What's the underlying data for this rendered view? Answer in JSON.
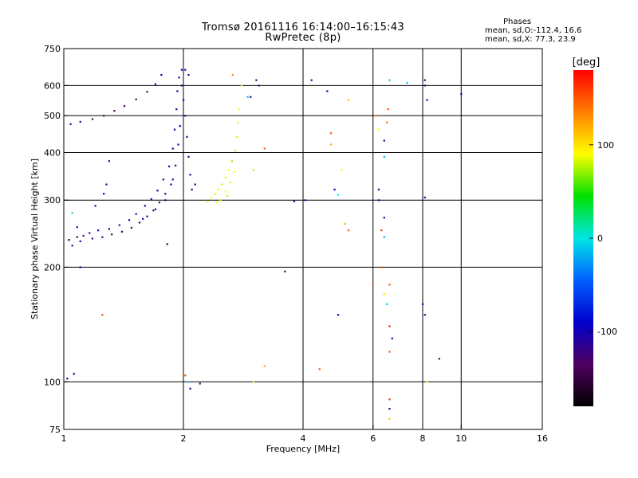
{
  "header": {
    "title_line1": "Tromsø 20161116 16:14:00–16:15:43",
    "title_line2": "RwPretec (8p)"
  },
  "phases": {
    "title": "Phases",
    "o_stats": "mean, sd,O:-112.4, 16.6",
    "x_stats": "mean, sd,X:  77.3, 23.9"
  },
  "colorbar": {
    "unit_label": "[deg]",
    "range": [
      -180,
      180
    ],
    "tick_labels": [
      "100",
      "0",
      "-100"
    ],
    "tick_values": [
      100,
      0,
      -100
    ],
    "colors": [
      "#ff0000",
      "#ff7f00",
      "#ffff00",
      "#00e000",
      "#00e5e5",
      "#0060ff",
      "#0000cc",
      "#50005f",
      "#000000"
    ]
  },
  "chart_data": {
    "type": "scatter",
    "xlabel": "Frequency [MHz]",
    "ylabel": "Stationary phase Virtual Height [km]",
    "x_scale": "log",
    "y_scale": "log",
    "xlim": [
      1,
      16
    ],
    "ylim": [
      75,
      750
    ],
    "x_ticks": [
      1,
      2,
      4,
      6,
      8,
      10,
      16
    ],
    "x_tick_labels": [
      "1",
      "2",
      "4",
      "6",
      "8",
      "10",
      "16"
    ],
    "y_ticks": [
      75,
      100,
      200,
      300,
      400,
      500,
      600,
      750
    ],
    "y_tick_labels": [
      "75",
      "100",
      "200",
      "300",
      "400",
      "500",
      "600",
      "750"
    ],
    "v_grid_lines": [
      2,
      4,
      6,
      8,
      10
    ],
    "h_grid_lines": [
      100,
      200,
      300,
      400,
      500,
      600
    ],
    "series": [
      {
        "color_by": "phase_deg",
        "points": [
          [
            1.03,
            236,
            -150
          ],
          [
            1.08,
            240,
            -140
          ],
          [
            1.12,
            242,
            -130
          ],
          [
            1.18,
            238,
            -120
          ],
          [
            1.25,
            240,
            -125
          ],
          [
            1.32,
            244,
            -140
          ],
          [
            1.4,
            248,
            -130
          ],
          [
            1.48,
            254,
            -135
          ],
          [
            1.55,
            262,
            -150
          ],
          [
            1.62,
            272,
            -125
          ],
          [
            1.68,
            282,
            -135
          ],
          [
            1.74,
            296,
            -140
          ],
          [
            1.8,
            312,
            -120
          ],
          [
            1.86,
            330,
            -110
          ],
          [
            1.05,
            228,
            -110
          ],
          [
            1.1,
            234,
            -100
          ],
          [
            1.16,
            246,
            -120
          ],
          [
            1.22,
            250,
            -105
          ],
          [
            1.3,
            252,
            -110
          ],
          [
            1.38,
            258,
            -120
          ],
          [
            1.46,
            266,
            -115
          ],
          [
            1.52,
            276,
            -120
          ],
          [
            1.6,
            290,
            -105
          ],
          [
            1.66,
            302,
            -110
          ],
          [
            1.72,
            318,
            -100
          ],
          [
            1.78,
            340,
            -110
          ],
          [
            1.84,
            368,
            -100
          ],
          [
            1.88,
            410,
            -100
          ],
          [
            1.9,
            460,
            -105
          ],
          [
            1.92,
            520,
            -110
          ],
          [
            1.93,
            580,
            -105
          ],
          [
            1.95,
            630,
            -100
          ],
          [
            1.98,
            660,
            -110
          ],
          [
            2.02,
            660,
            -105
          ],
          [
            2.06,
            640,
            -105
          ],
          [
            1.98,
            600,
            -110
          ],
          [
            2.0,
            550,
            -100
          ],
          [
            2.02,
            500,
            -105
          ],
          [
            2.04,
            440,
            -110
          ],
          [
            2.06,
            390,
            -105
          ],
          [
            2.08,
            350,
            -110
          ],
          [
            2.1,
            320,
            -100
          ],
          [
            2.14,
            330,
            -105
          ],
          [
            1.96,
            470,
            -100
          ],
          [
            1.94,
            420,
            -110
          ],
          [
            1.91,
            370,
            -100
          ],
          [
            1.88,
            340,
            -105
          ],
          [
            1.8,
            300,
            -110
          ],
          [
            1.7,
            284,
            -100
          ],
          [
            1.58,
            268,
            -105
          ],
          [
            1.04,
            475,
            -120
          ],
          [
            1.1,
            482,
            -130
          ],
          [
            1.18,
            490,
            -140
          ],
          [
            1.26,
            500,
            -130
          ],
          [
            1.34,
            515,
            -140
          ],
          [
            1.42,
            530,
            -120
          ],
          [
            1.52,
            552,
            -135
          ],
          [
            1.62,
            578,
            -130
          ],
          [
            1.7,
            605,
            -110
          ],
          [
            1.76,
            640,
            -100
          ],
          [
            1.3,
            380,
            -110
          ],
          [
            1.28,
            330,
            -105
          ],
          [
            1.26,
            312,
            -100
          ],
          [
            1.2,
            290,
            -100
          ],
          [
            1.08,
            255,
            -110
          ],
          [
            1.05,
            278,
            0
          ],
          [
            1.1,
            200,
            -110
          ],
          [
            1.06,
            105,
            -100
          ],
          [
            1.02,
            102,
            -110
          ],
          [
            1.25,
            150,
            150
          ],
          [
            1.82,
            230,
            -150
          ],
          [
            2.02,
            104,
            150
          ],
          [
            2.05,
            100,
            -10
          ],
          [
            2.08,
            96,
            -110
          ],
          [
            2.2,
            99,
            -130
          ],
          [
            2.3,
            298,
            80
          ],
          [
            2.35,
            305,
            90
          ],
          [
            2.4,
            312,
            85
          ],
          [
            2.45,
            320,
            95
          ],
          [
            2.5,
            330,
            80
          ],
          [
            2.55,
            344,
            85
          ],
          [
            2.6,
            360,
            90
          ],
          [
            2.65,
            380,
            75
          ],
          [
            2.7,
            405,
            80
          ],
          [
            2.72,
            440,
            80
          ],
          [
            2.74,
            480,
            85
          ],
          [
            2.76,
            520,
            90
          ],
          [
            2.42,
            296,
            85
          ],
          [
            2.48,
            300,
            80
          ],
          [
            2.56,
            316,
            90
          ],
          [
            2.62,
            334,
            85
          ],
          [
            2.68,
            356,
            90
          ],
          [
            2.58,
            308,
            80
          ],
          [
            2.8,
            600,
            100
          ],
          [
            2.9,
            560,
            -10
          ],
          [
            2.66,
            640,
            130
          ],
          [
            3.0,
            360,
            110
          ],
          [
            3.05,
            620,
            -110
          ],
          [
            3.1,
            600,
            -110
          ],
          [
            3.2,
            410,
            150
          ],
          [
            3.2,
            110,
            120
          ],
          [
            3.0,
            100,
            100
          ],
          [
            2.95,
            560,
            -110
          ],
          [
            3.8,
            298,
            -110
          ],
          [
            4.05,
            300,
            -100
          ],
          [
            4.2,
            620,
            -110
          ],
          [
            4.6,
            580,
            -110
          ],
          [
            4.8,
            320,
            -90
          ],
          [
            4.9,
            310,
            0
          ],
          [
            4.7,
            450,
            150
          ],
          [
            4.7,
            420,
            120
          ],
          [
            5.0,
            360,
            90
          ],
          [
            5.1,
            260,
            120
          ],
          [
            5.2,
            550,
            110
          ],
          [
            3.6,
            195,
            -140
          ],
          [
            4.4,
            108,
            150
          ],
          [
            5.2,
            250,
            150
          ],
          [
            4.9,
            150,
            -100
          ],
          [
            6.0,
            180,
            150
          ],
          [
            6.1,
            500,
            130
          ],
          [
            6.2,
            300,
            -110
          ],
          [
            6.2,
            320,
            -120
          ],
          [
            6.3,
            250,
            160
          ],
          [
            6.4,
            240,
            -20
          ],
          [
            6.2,
            460,
            90
          ],
          [
            6.4,
            390,
            -20
          ],
          [
            6.5,
            480,
            140
          ],
          [
            6.55,
            520,
            150
          ],
          [
            6.6,
            620,
            -10
          ],
          [
            6.6,
            180,
            150
          ],
          [
            6.6,
            140,
            170
          ],
          [
            6.6,
            120,
            150
          ],
          [
            6.6,
            90,
            160
          ],
          [
            6.6,
            85,
            -110
          ],
          [
            6.6,
            80,
            110
          ],
          [
            6.7,
            130,
            -110
          ],
          [
            6.4,
            430,
            -110
          ],
          [
            6.3,
            200,
            150
          ],
          [
            6.5,
            160,
            -10
          ],
          [
            6.4,
            170,
            100
          ],
          [
            6.4,
            270,
            -100
          ],
          [
            7.3,
            610,
            -10
          ],
          [
            8.1,
            600,
            -110
          ],
          [
            8.2,
            550,
            -110
          ],
          [
            8.1,
            305,
            -110
          ],
          [
            8.0,
            160,
            -110
          ],
          [
            8.1,
            150,
            -110
          ],
          [
            8.2,
            100,
            90
          ],
          [
            8.8,
            115,
            -130
          ],
          [
            10.0,
            570,
            -110
          ],
          [
            8.1,
            620,
            -110
          ]
        ]
      }
    ]
  }
}
